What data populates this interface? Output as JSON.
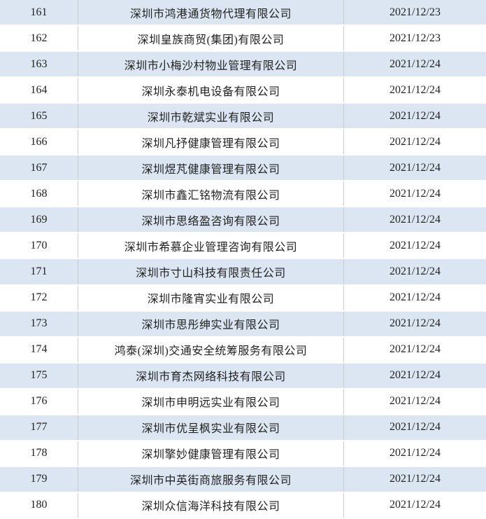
{
  "table": {
    "columns": [
      {
        "key": "index",
        "semantic": "row-number"
      },
      {
        "key": "company",
        "semantic": "company-name"
      },
      {
        "key": "date",
        "semantic": "record-date"
      }
    ],
    "rows": [
      {
        "index": "161",
        "company": "深圳市鸿港通货物代理有限公司",
        "date": "2021/12/23"
      },
      {
        "index": "162",
        "company": "深圳皇族商贸(集团)有限公司",
        "date": "2021/12/23"
      },
      {
        "index": "163",
        "company": "深圳市小梅沙村物业管理有限公司",
        "date": "2021/12/24"
      },
      {
        "index": "164",
        "company": "深圳永泰机电设备有限公司",
        "date": "2021/12/24"
      },
      {
        "index": "165",
        "company": "深圳市乾斌实业有限公司",
        "date": "2021/12/24"
      },
      {
        "index": "166",
        "company": "深圳凡抒健康管理有限公司",
        "date": "2021/12/24"
      },
      {
        "index": "167",
        "company": "深圳煜芃健康管理有限公司",
        "date": "2021/12/24"
      },
      {
        "index": "168",
        "company": "深圳市鑫汇铭物流有限公司",
        "date": "2021/12/24"
      },
      {
        "index": "169",
        "company": "深圳市思络盈咨询有限公司",
        "date": "2021/12/24"
      },
      {
        "index": "170",
        "company": "深圳市希慕企业管理咨询有限公司",
        "date": "2021/12/24"
      },
      {
        "index": "171",
        "company": "深圳市寸山科技有限责任公司",
        "date": "2021/12/24"
      },
      {
        "index": "172",
        "company": "深圳市隆宵实业有限公司",
        "date": "2021/12/24"
      },
      {
        "index": "173",
        "company": "深圳市思彤绅实业有限公司",
        "date": "2021/12/24"
      },
      {
        "index": "174",
        "company": "鸿泰(深圳)交通安全统筹服务有限公司",
        "date": "2021/12/24"
      },
      {
        "index": "175",
        "company": "深圳市育杰网络科技有限公司",
        "date": "2021/12/24"
      },
      {
        "index": "176",
        "company": "深圳市申明远实业有限公司",
        "date": "2021/12/24"
      },
      {
        "index": "177",
        "company": "深圳市优呈枫实业有限公司",
        "date": "2021/12/24"
      },
      {
        "index": "178",
        "company": "深圳擎妙健康管理有限公司",
        "date": "2021/12/24"
      },
      {
        "index": "179",
        "company": "深圳市中英街商旅服务有限公司",
        "date": "2021/12/24"
      },
      {
        "index": "180",
        "company": "深圳众信海洋科技有限公司",
        "date": "2021/12/24"
      }
    ]
  },
  "colors": {
    "band_blue": "#dbe6f2",
    "row_white": "#ffffff",
    "divider_gray": "#c9cdd2",
    "text": "#222222"
  }
}
